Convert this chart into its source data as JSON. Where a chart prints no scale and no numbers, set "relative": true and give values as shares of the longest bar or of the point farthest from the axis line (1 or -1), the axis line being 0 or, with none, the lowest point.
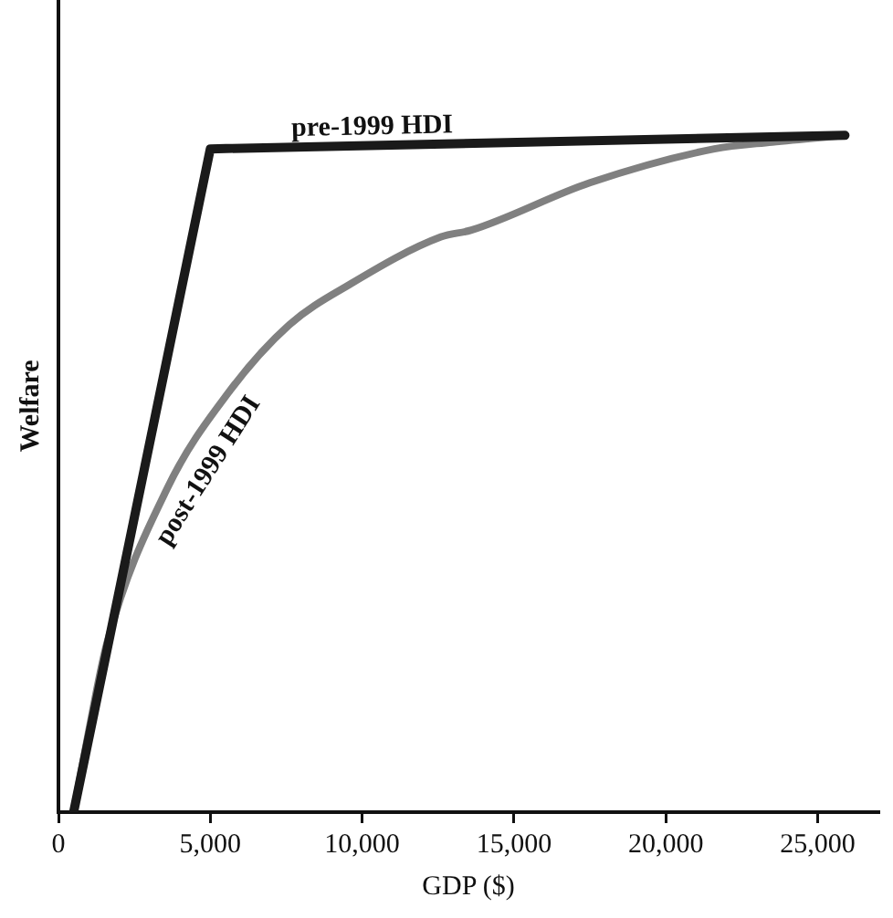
{
  "chart_data": {
    "type": "line",
    "relative": true,
    "xlabel": "GDP ($)",
    "ylabel": "Welfare",
    "xlim": [
      0,
      27000
    ],
    "xticks": [
      0,
      {
        "value": 5000,
        "label": "5,000"
      },
      {
        "value": 10000,
        "label": "10,000"
      },
      {
        "value": 15000,
        "label": "15,000"
      },
      {
        "value": 20000,
        "label": "20,000"
      },
      {
        "value": 25000,
        "label": "25,000"
      }
    ],
    "legend": false,
    "marker": "none",
    "line_style": "solid",
    "series": [
      {
        "name": "pre-1999 HDI",
        "color": "#1a1a1a",
        "x": [
          500,
          5000,
          25900
        ],
        "values": [
          0,
          0.98,
          1
        ]
      },
      {
        "name": "post-1999 HDI",
        "color": "#808080",
        "x": [
          500,
          1000,
          1600,
          3600,
          5600,
          7600,
          9600,
          12600,
          13600,
          17500,
          21600,
          23500,
          25900
        ],
        "values": [
          0,
          0.12,
          0.25,
          0.48,
          0.62,
          0.72,
          0.78,
          0.85,
          0.86,
          0.93,
          0.98,
          0.99,
          1
        ]
      }
    ]
  }
}
